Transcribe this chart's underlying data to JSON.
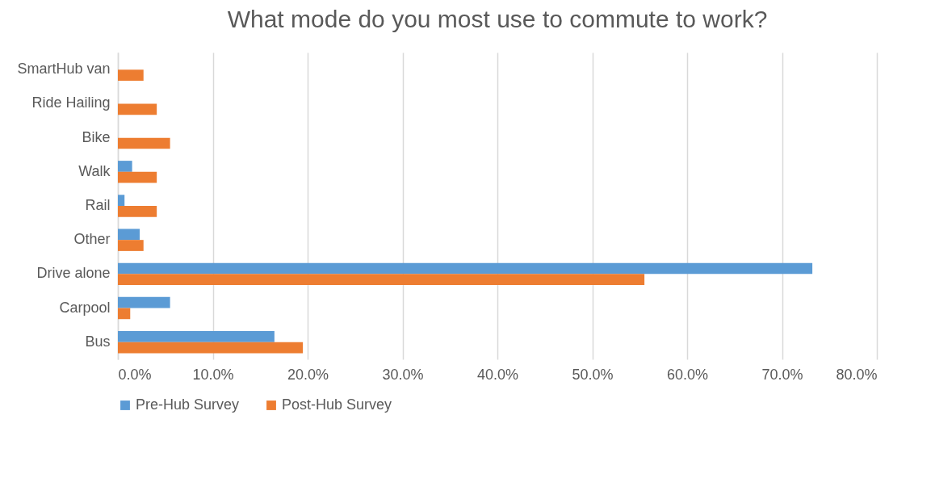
{
  "chart_data": {
    "type": "bar",
    "orientation": "horizontal",
    "title": "What mode do you most use to commute to work?",
    "categories": [
      "SmartHub van",
      "Ride Hailing",
      "Bike",
      "Walk",
      "Rail",
      "Other",
      "Drive alone",
      "Carpool",
      "Bus"
    ],
    "series": [
      {
        "name": "Pre-Hub Survey",
        "color": "#5b9bd5",
        "values": [
          null,
          null,
          null,
          1.5,
          0.7,
          2.3,
          73.2,
          5.5,
          16.5
        ]
      },
      {
        "name": "Post-Hub Survey",
        "color": "#ed7d31",
        "values": [
          2.7,
          4.1,
          5.5,
          4.1,
          4.1,
          2.7,
          55.5,
          1.3,
          19.5
        ]
      }
    ],
    "xlim": [
      0,
      80
    ],
    "xticks": [
      {
        "value": 0,
        "label": "0.0%"
      },
      {
        "value": 10,
        "label": "10.0%"
      },
      {
        "value": 20,
        "label": "20.0%"
      },
      {
        "value": 30,
        "label": "30.0%"
      },
      {
        "value": 40,
        "label": "40.0%"
      },
      {
        "value": 50,
        "label": "50.0%"
      },
      {
        "value": 60,
        "label": "60.0%"
      },
      {
        "value": 70,
        "label": "70.0%"
      },
      {
        "value": 80,
        "label": "80.0%"
      }
    ],
    "grid": "x",
    "legend": "bottom"
  }
}
